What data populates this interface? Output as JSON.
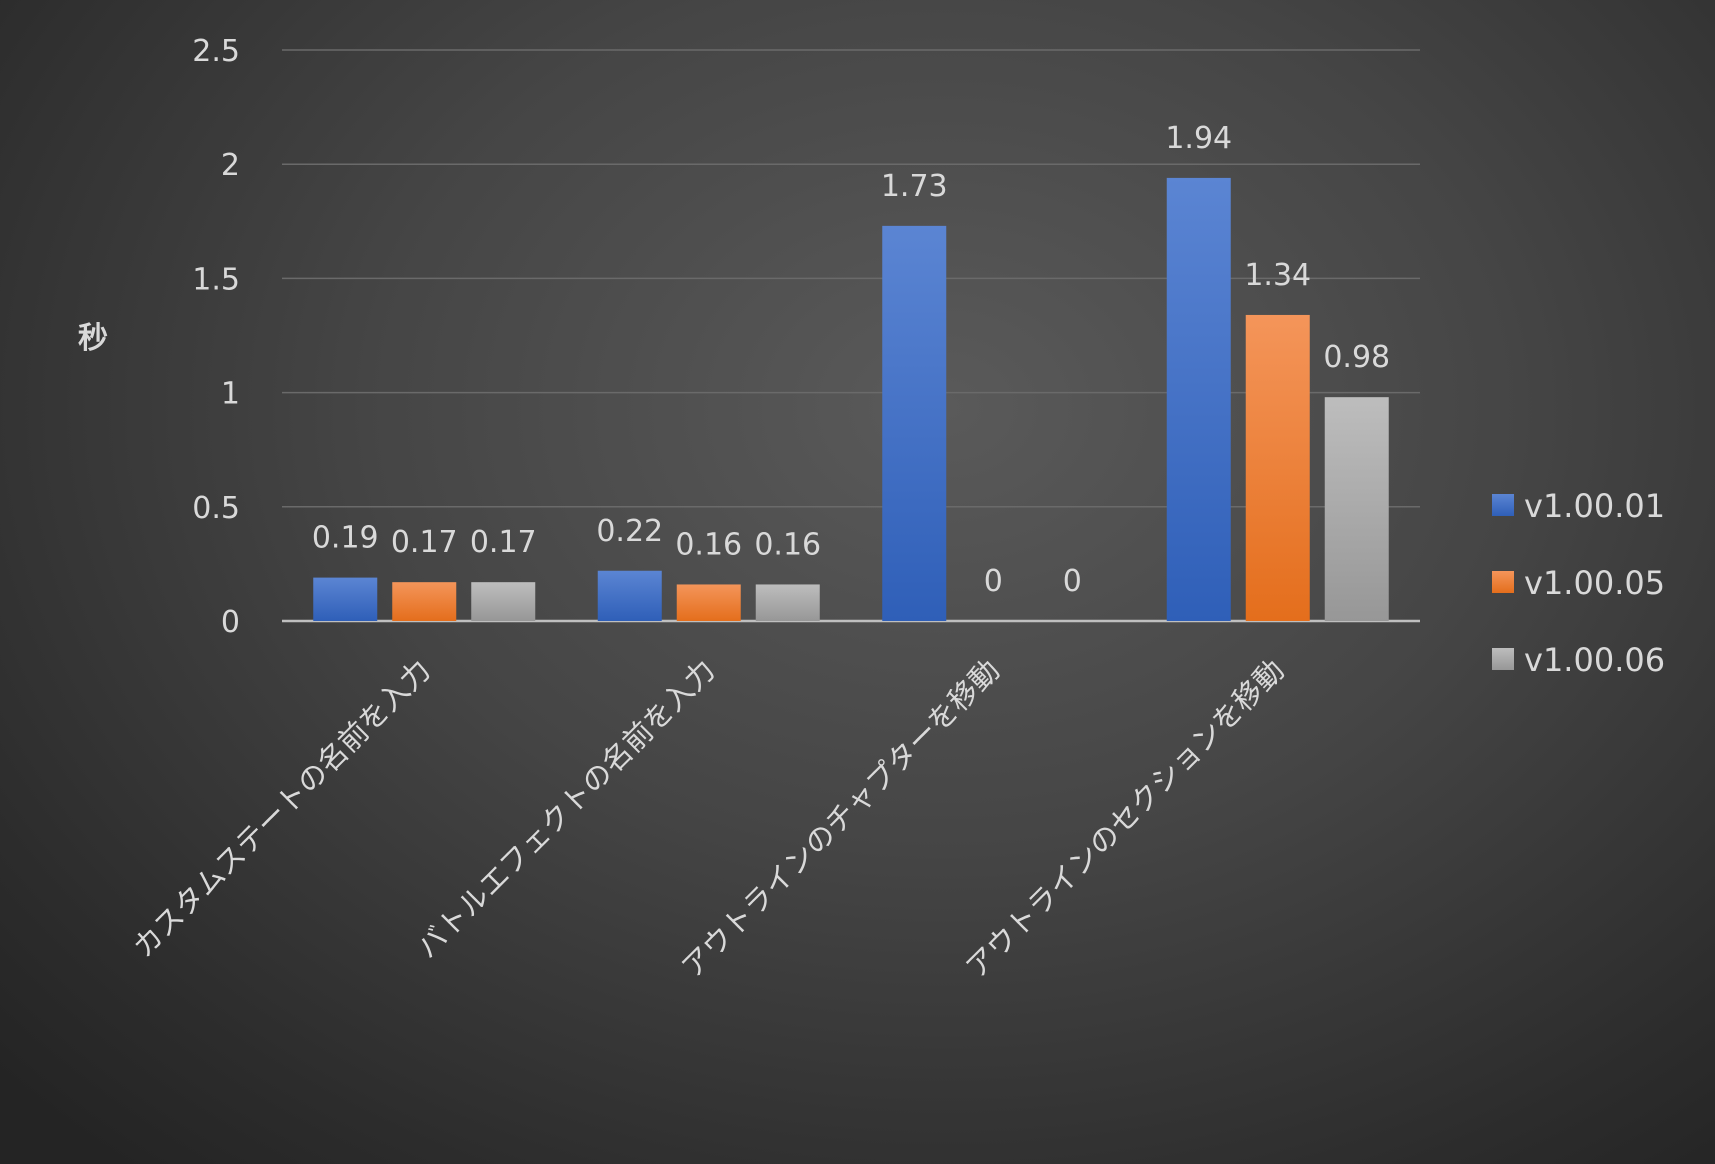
{
  "chart_data": {
    "type": "bar",
    "title": "",
    "xlabel": "",
    "ylabel": "秒",
    "ylim": [
      0,
      2.5
    ],
    "yticks": [
      "0",
      "0.5",
      "1",
      "1.5",
      "2",
      "2.5"
    ],
    "ytick_values": [
      0,
      0.5,
      1,
      1.5,
      2,
      2.5
    ],
    "grid": true,
    "legend_position": "right",
    "categories": [
      "カスタムステートの名前を入力",
      "バトルエフェクトの名前を入力",
      "アウトラインのチャプターを移動",
      "アウトラインのセクションを移動"
    ],
    "series": [
      {
        "name": "v1.00.01",
        "color": "#4472c4",
        "values": [
          0.19,
          0.22,
          1.73,
          1.94
        ],
        "labels": [
          "0.19",
          "0.22",
          "1.73",
          "1.94"
        ]
      },
      {
        "name": "v1.00.05",
        "color": "#ed7d31",
        "values": [
          0.17,
          0.16,
          0,
          1.34
        ],
        "labels": [
          "0.17",
          "0.16",
          "0",
          "1.34"
        ]
      },
      {
        "name": "v1.00.06",
        "color": "#a5a5a5",
        "values": [
          0.17,
          0.16,
          0,
          0.98
        ],
        "labels": [
          "0.17",
          "0.16",
          "0",
          "0.98"
        ]
      }
    ]
  }
}
